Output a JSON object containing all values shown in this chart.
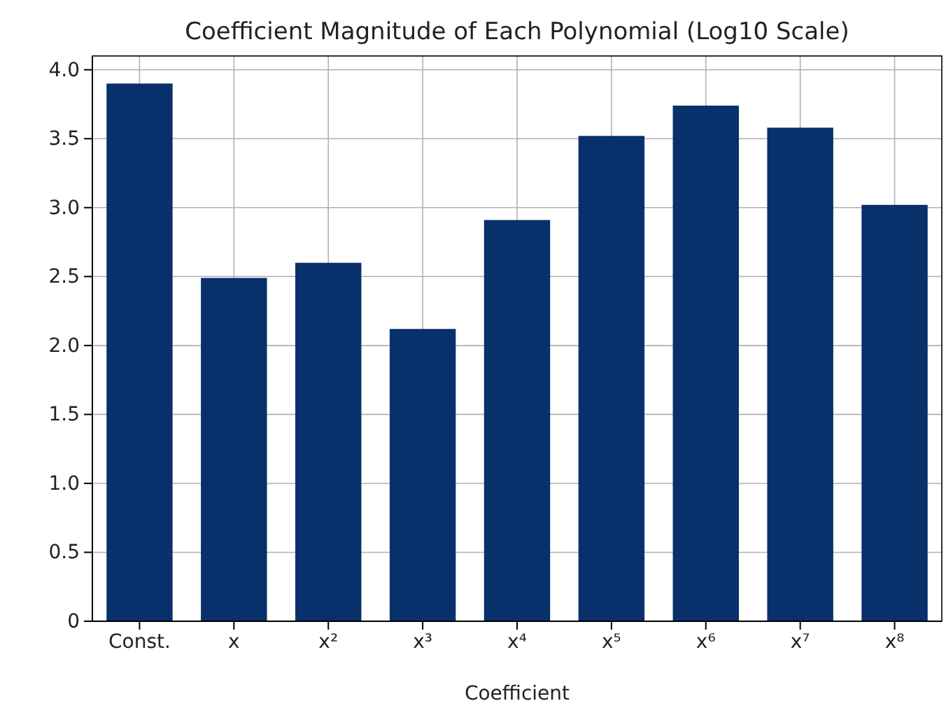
{
  "chart_data": {
    "type": "bar",
    "title": "Coefficient Magnitude of Each Polynomial (Log10 Scale)",
    "xlabel": "Coefficient",
    "categories": [
      "Const.",
      "x",
      "x²",
      "x³",
      "x⁴",
      "x⁵",
      "x⁶",
      "x⁷",
      "x⁸"
    ],
    "values": [
      3.9,
      2.49,
      2.6,
      2.12,
      2.91,
      3.52,
      3.74,
      3.58,
      3.02
    ],
    "color": "#08306b",
    "ylim": [
      0,
      4.1
    ],
    "yticks": [
      0,
      {
        "value": 0.5,
        "label": "0.5"
      },
      {
        "value": 1,
        "label": "1.0"
      },
      {
        "value": 1.5,
        "label": "1.5"
      },
      {
        "value": 2,
        "label": "2.0"
      },
      {
        "value": 2.5,
        "label": "2.5"
      },
      {
        "value": 3,
        "label": "3.0"
      },
      {
        "value": 3.5,
        "label": "3.5"
      },
      {
        "value": 4,
        "label": "4.0"
      }
    ],
    "grid": true
  }
}
